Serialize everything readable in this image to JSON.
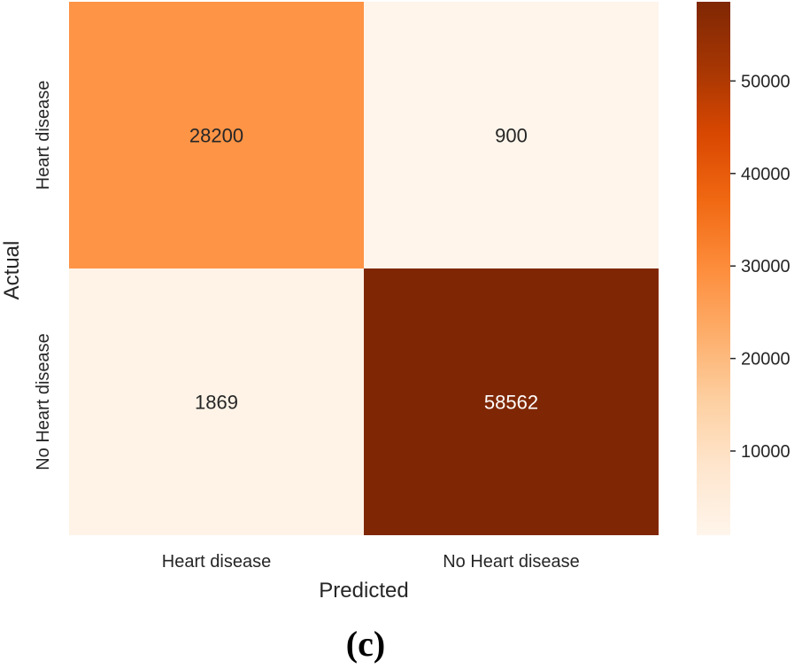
{
  "chart_data": {
    "type": "heatmap",
    "title": "",
    "xlabel": "Predicted",
    "ylabel": "Actual",
    "x_categories": [
      "Heart disease",
      "No Heart disease"
    ],
    "y_categories": [
      "Heart disease",
      "No Heart disease"
    ],
    "values": [
      [
        28200,
        900
      ],
      [
        1869,
        58562
      ]
    ],
    "value_labels": [
      [
        "28200",
        "900"
      ],
      [
        "1869",
        "58562"
      ]
    ],
    "colorbar": {
      "range": [
        900,
        58562
      ],
      "ticks": [
        10000,
        20000,
        30000,
        40000,
        50000
      ],
      "tick_labels": [
        "10000",
        "20000",
        "30000",
        "40000",
        "50000"
      ],
      "colormap": "Oranges",
      "colors": [
        "#fff5eb",
        "#fee6ce",
        "#fdd0a2",
        "#fdae6b",
        "#fd8d3c",
        "#f16913",
        "#d94801",
        "#a63603",
        "#7f2704"
      ]
    },
    "panel_label": "(c)"
  }
}
